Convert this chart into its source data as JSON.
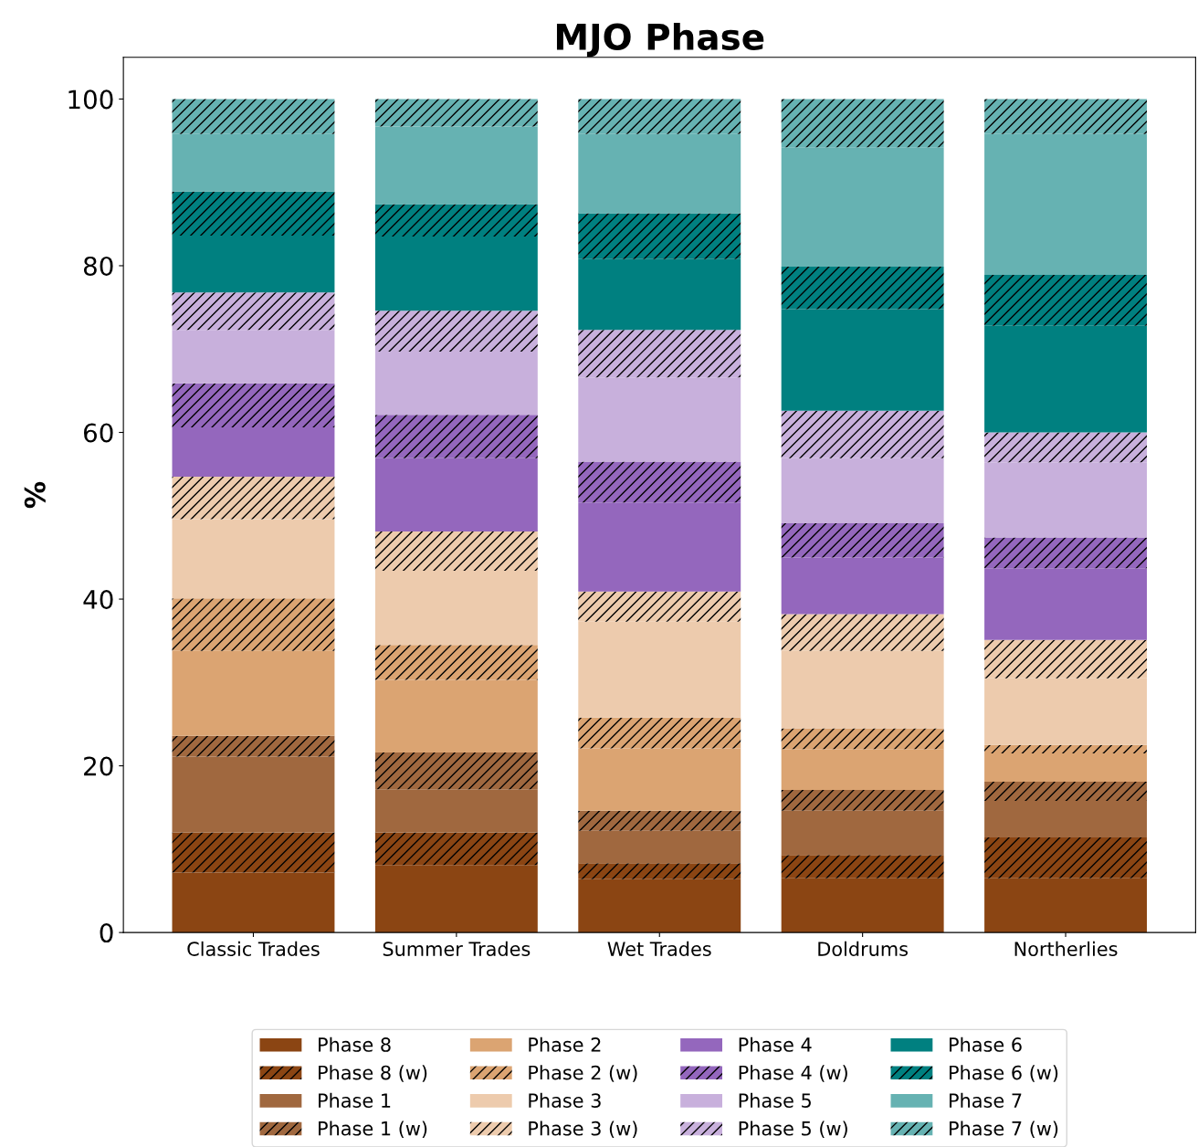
{
  "chart_data": {
    "type": "bar",
    "title": "MJO Phase",
    "ylabel": "%",
    "stacked": true,
    "categories": [
      "Classic Trades",
      "Summer Trades",
      "Wet Trades",
      "Doldrums",
      "Northerlies"
    ],
    "ylim": [
      0,
      105
    ],
    "yticks": [
      0,
      20,
      40,
      60,
      80,
      100
    ],
    "grid": false,
    "legend": "bottom",
    "series": [
      {
        "name": "Phase 8",
        "color": "#8b4513",
        "values": [
          7.2,
          8.1,
          6.4,
          6.5,
          6.5
        ]
      },
      {
        "name": "Phase 8 (w)",
        "color": "#8b4513",
        "line_style": "dashed",
        "values": [
          4.8,
          3.9,
          1.9,
          2.8,
          4.9
        ]
      },
      {
        "name": "Phase 1",
        "color": "#a0683f",
        "values": [
          9.1,
          5.2,
          3.9,
          5.3,
          4.4
        ]
      },
      {
        "name": "Phase 1 (w)",
        "color": "#a0683f",
        "line_style": "dashed",
        "values": [
          2.5,
          4.4,
          2.4,
          2.5,
          2.3
        ]
      },
      {
        "name": "Phase 2",
        "color": "#dba472",
        "values": [
          10.2,
          8.7,
          7.5,
          4.9,
          3.4
        ]
      },
      {
        "name": "Phase 2 (w)",
        "color": "#dba472",
        "line_style": "dashed",
        "values": [
          6.3,
          4.2,
          3.7,
          2.5,
          1.0
        ]
      },
      {
        "name": "Phase 3",
        "color": "#edcbad",
        "values": [
          9.5,
          8.9,
          11.5,
          9.3,
          8.0
        ]
      },
      {
        "name": "Phase 3 (w)",
        "color": "#edcbad",
        "line_style": "dashed",
        "values": [
          5.1,
          4.7,
          3.6,
          4.4,
          4.6
        ]
      },
      {
        "name": "Phase 4",
        "color": "#9467bd",
        "values": [
          5.9,
          8.8,
          10.7,
          6.8,
          8.6
        ]
      },
      {
        "name": "Phase 4 (w)",
        "color": "#9467bd",
        "line_style": "dashed",
        "values": [
          5.3,
          5.2,
          4.9,
          4.1,
          3.7
        ]
      },
      {
        "name": "Phase 5",
        "color": "#c8b0dc",
        "values": [
          6.4,
          7.6,
          10.1,
          7.8,
          9.0
        ]
      },
      {
        "name": "Phase 5 (w)",
        "color": "#c8b0dc",
        "line_style": "dashed",
        "values": [
          4.5,
          4.9,
          5.7,
          5.7,
          3.6
        ]
      },
      {
        "name": "Phase 6",
        "color": "#008080",
        "values": [
          6.8,
          8.9,
          8.5,
          12.2,
          12.8
        ]
      },
      {
        "name": "Phase 6 (w)",
        "color": "#008080",
        "line_style": "dashed",
        "values": [
          5.3,
          3.9,
          5.5,
          5.1,
          6.1
        ]
      },
      {
        "name": "Phase 7",
        "color": "#66b2b2",
        "values": [
          6.9,
          9.3,
          9.5,
          14.3,
          16.9
        ]
      },
      {
        "name": "Phase 7 (w)",
        "color": "#66b2b2",
        "line_style": "dashed",
        "values": [
          4.2,
          3.3,
          4.2,
          5.8,
          4.2
        ]
      }
    ]
  }
}
